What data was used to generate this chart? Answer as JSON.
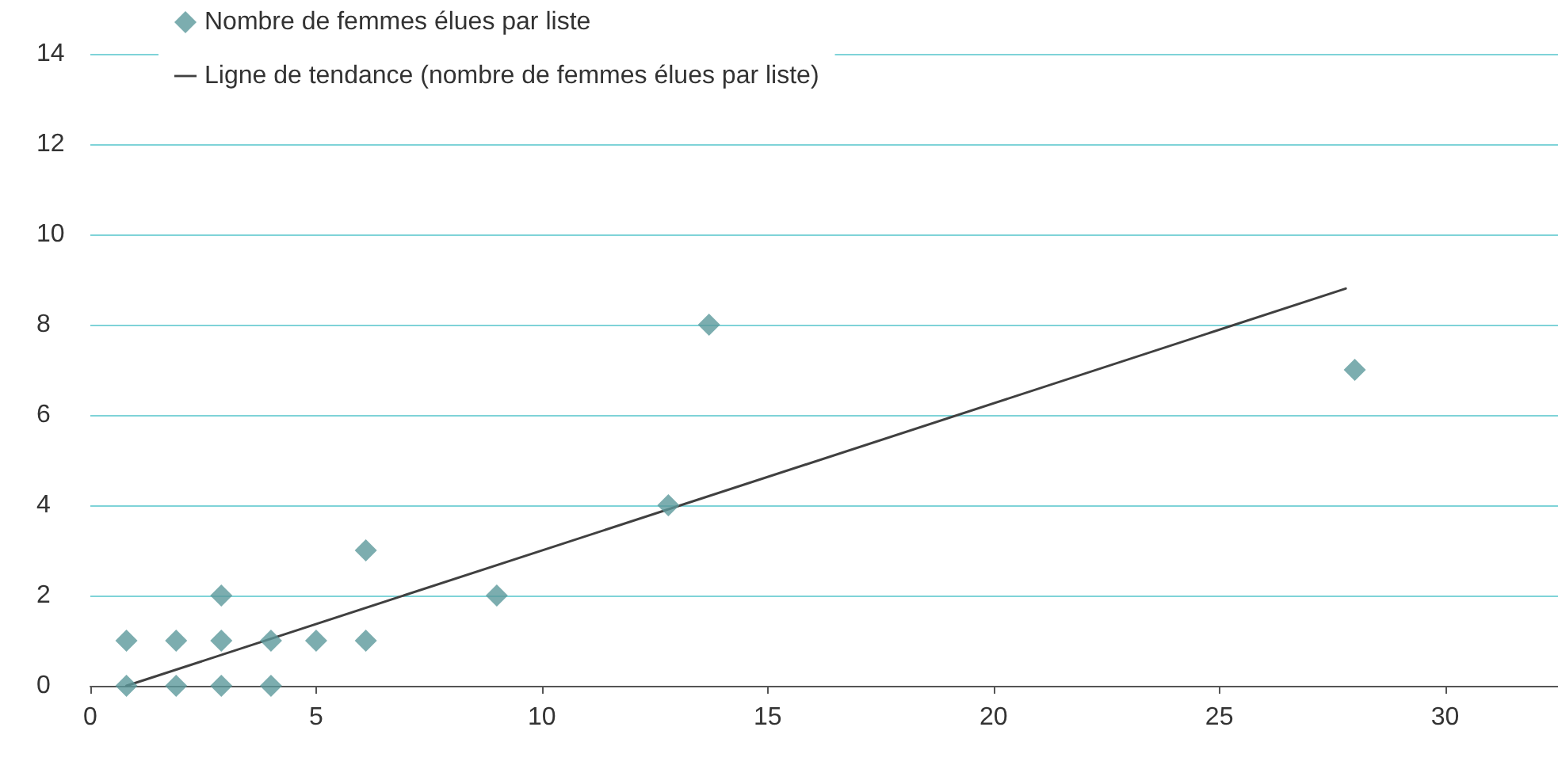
{
  "chart_data": {
    "type": "scatter",
    "xlim": [
      0,
      32.5
    ],
    "xticks": [
      0,
      5,
      10,
      15,
      20,
      25,
      30
    ],
    "ylim": [
      0,
      14
    ],
    "yticks": [
      0,
      2,
      4,
      6,
      8,
      10,
      12,
      14
    ],
    "grid": "y",
    "legend": "top left",
    "series": [
      {
        "name": "Nombre de femmes élues par liste",
        "marker": "diamond",
        "color": "#5b999b",
        "x": [
          0.8,
          0.8,
          1.9,
          1.9,
          2.9,
          2.9,
          2.9,
          4.0,
          4.0,
          5.0,
          6.1,
          6.1,
          9.0,
          12.8,
          13.7,
          28.0
        ],
        "values": [
          0,
          1,
          0,
          1,
          0,
          1,
          2,
          0,
          1,
          1,
          1,
          3,
          2,
          4,
          8,
          7
        ]
      },
      {
        "name": "Ligne de tendance (nombre de femmes élues par liste)",
        "type": "line",
        "color": "#404040",
        "line_style": "solid",
        "x": [
          0.8,
          27.8
        ],
        "values": [
          0,
          8.8
        ]
      }
    ]
  }
}
